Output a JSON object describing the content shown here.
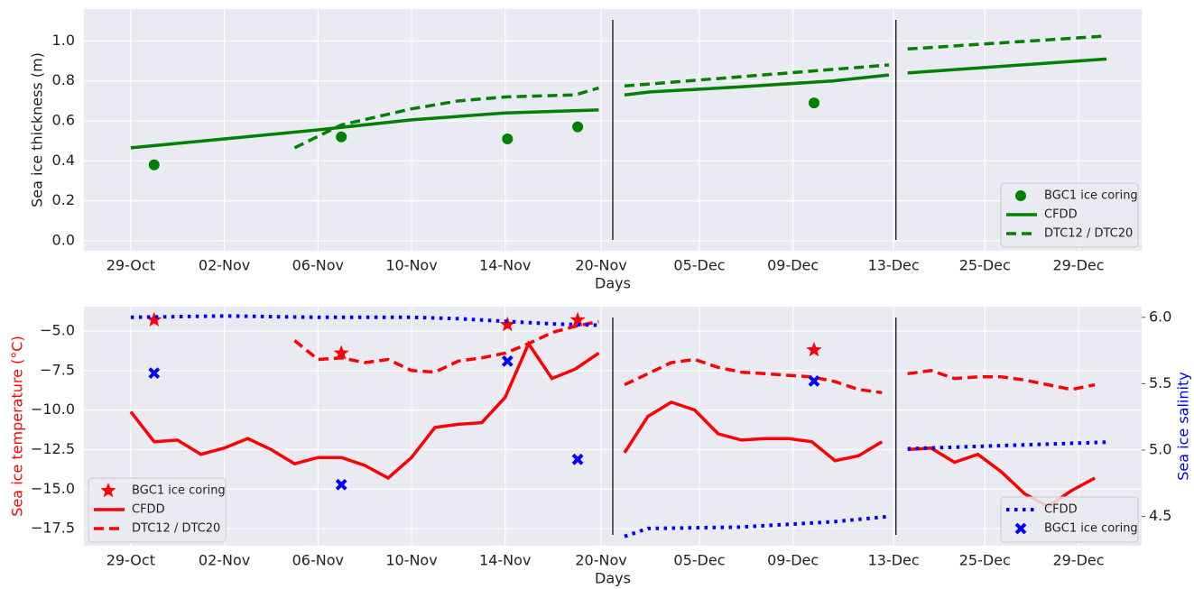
{
  "chart_data": [
    {
      "type": "line",
      "xlabel": "Days",
      "ylabel": "Sea ice thickness (m)",
      "ylabel_color": "#222222",
      "xlim": [
        -2,
        43.2
      ],
      "ylim": [
        -0.05,
        1.16
      ],
      "grid": true,
      "legend": "lower right",
      "xticks": [
        {
          "value": 0,
          "label": "29-Oct"
        },
        {
          "value": 4,
          "label": "02-Nov"
        },
        {
          "value": 8,
          "label": "06-Nov"
        },
        {
          "value": 12,
          "label": "10-Nov"
        },
        {
          "value": 16,
          "label": "14-Nov"
        },
        {
          "value": 20.1,
          "label": "20-Nov"
        },
        {
          "value": 24.3,
          "label": "05-Dec"
        },
        {
          "value": 28.3,
          "label": "09-Dec"
        },
        {
          "value": 32.6,
          "label": "13-Dec"
        },
        {
          "value": 36.5,
          "label": "25-Dec"
        },
        {
          "value": 40.5,
          "label": "29-Dec"
        }
      ],
      "yticks": [
        {
          "value": 0,
          "label": "0.0"
        },
        0.2,
        0.4,
        0.6,
        0.8,
        {
          "value": 1,
          "label": "1.0"
        }
      ],
      "breaks": [
        20.6,
        32.7
      ],
      "series": [
        {
          "name": "BGC1 ice coring",
          "kind": "scatter",
          "marker": "circle",
          "color": "#008000",
          "x": [
            1,
            9,
            16.1,
            19.1,
            29.2
          ],
          "values": [
            0.38,
            0.52,
            0.51,
            0.57,
            0.69
          ]
        },
        {
          "name": "CFDD",
          "kind": "line",
          "dash": "solid",
          "color": "#008000",
          "x": [
            0,
            4,
            8,
            12,
            16,
            20,
            null,
            21.1,
            22.2,
            26,
            30,
            32.4,
            null,
            33.2,
            41.7
          ],
          "values": [
            0.465,
            0.51,
            0.555,
            0.605,
            0.64,
            0.655,
            null,
            0.73,
            0.745,
            0.77,
            0.8,
            0.83,
            null,
            0.84,
            0.91
          ]
        },
        {
          "name": "DTC12 / DTC20",
          "kind": "line",
          "dash": "dashed",
          "color": "#008000",
          "x": [
            7,
            9,
            12,
            14,
            16,
            19,
            20,
            null,
            21.1,
            32.4,
            null,
            33.2,
            41.7
          ],
          "values": [
            0.465,
            0.58,
            0.66,
            0.7,
            0.72,
            0.73,
            0.765,
            null,
            0.775,
            0.88,
            null,
            0.96,
            1.025
          ]
        }
      ]
    },
    {
      "type": "line",
      "xlabel": "Days",
      "ylabel": "Sea ice temperature (°C)",
      "ylabel_color": "#ff0000",
      "y2label": "Sea ice salinity",
      "y2label_color": "#0000ff",
      "xlim": [
        -2,
        43.2
      ],
      "ylim": [
        -18.58,
        -3.46
      ],
      "y2lim": [
        4.28,
        6.08
      ],
      "grid": true,
      "legend": "lower left",
      "legend2": "lower right",
      "xticks": [
        {
          "value": 0,
          "label": "29-Oct"
        },
        {
          "value": 4,
          "label": "02-Nov"
        },
        {
          "value": 8,
          "label": "06-Nov"
        },
        {
          "value": 12,
          "label": "10-Nov"
        },
        {
          "value": 16,
          "label": "14-Nov"
        },
        {
          "value": 20.1,
          "label": "20-Nov"
        },
        {
          "value": 24.3,
          "label": "05-Dec"
        },
        {
          "value": 28.3,
          "label": "09-Dec"
        },
        {
          "value": 32.6,
          "label": "13-Dec"
        },
        {
          "value": 36.5,
          "label": "25-Dec"
        },
        {
          "value": 40.5,
          "label": "29-Dec"
        }
      ],
      "yticks": [
        {
          "value": -17.5,
          "label": "−17.5"
        },
        {
          "value": -15,
          "label": "−15.0"
        },
        {
          "value": -12.5,
          "label": "−12.5"
        },
        {
          "value": -10,
          "label": "−10.0"
        },
        {
          "value": -7.5,
          "label": "−7.5"
        },
        {
          "value": -5,
          "label": "−5.0"
        }
      ],
      "y2ticks": [
        4.5,
        {
          "value": 5,
          "label": "5.0"
        },
        5.5,
        {
          "value": 6,
          "label": "6.0"
        }
      ],
      "breaks": [
        20.6,
        32.7
      ],
      "series": [
        {
          "name": "BGC1 ice coring",
          "kind": "scatter",
          "marker": "star",
          "color": "#ff0000",
          "x": [
            1,
            9,
            16.1,
            19.1,
            29.2
          ],
          "values": [
            -4.3,
            -6.4,
            -4.6,
            -4.3,
            -6.2
          ]
        },
        {
          "name": "CFDD",
          "kind": "line",
          "dash": "solid",
          "color": "#ff0000",
          "x": [
            0,
            1,
            2,
            3,
            4,
            5,
            6,
            7,
            8,
            9,
            10,
            11,
            12,
            13,
            14,
            15,
            16,
            17,
            18,
            19,
            20,
            null,
            21.1,
            22.1,
            23.1,
            24.1,
            25.1,
            26.1,
            27.1,
            28.1,
            29.1,
            30.1,
            31.1,
            32.1,
            null,
            33.2,
            34.2,
            35.2,
            36.2,
            37.2,
            38.2,
            39.2,
            40.2,
            41.2
          ],
          "values": [
            -10.1,
            -12.0,
            -11.9,
            -12.8,
            -12.4,
            -11.8,
            -12.5,
            -13.4,
            -13.0,
            -13.0,
            -13.5,
            -14.3,
            -13.0,
            -11.1,
            -10.9,
            -10.8,
            -9.2,
            -5.8,
            -8.0,
            -7.4,
            -6.4,
            null,
            -12.7,
            -10.4,
            -9.5,
            -10.0,
            -11.5,
            -11.9,
            -11.8,
            -11.8,
            -12.0,
            -13.2,
            -12.9,
            -12.0,
            null,
            -12.5,
            -12.4,
            -13.3,
            -12.8,
            -13.9,
            -15.3,
            -16.1,
            -15.1,
            -14.3
          ]
        },
        {
          "name": "DTC12 / DTC20",
          "kind": "line",
          "dash": "dashed",
          "color": "#ff0000",
          "x": [
            7,
            8,
            9,
            10,
            11,
            12,
            13,
            14,
            15,
            16,
            17,
            18,
            19,
            20,
            null,
            21.1,
            22.1,
            23.1,
            24.1,
            25.1,
            26.1,
            27.1,
            28.1,
            29.1,
            30.1,
            31.1,
            32.1,
            null,
            33.2,
            34.2,
            35.2,
            36.2,
            37.2,
            38.2,
            39.2,
            40.2,
            41.2
          ],
          "values": [
            -5.6,
            -6.8,
            -6.7,
            -7.0,
            -6.8,
            -7.5,
            -7.6,
            -6.9,
            -6.7,
            -6.4,
            -5.8,
            -5.1,
            -4.7,
            -4.4,
            null,
            -8.4,
            -7.7,
            -7.0,
            -6.8,
            -7.3,
            -7.6,
            -7.7,
            -7.8,
            -7.9,
            -8.2,
            -8.7,
            -8.9,
            null,
            -7.7,
            -7.5,
            -8.0,
            -7.9,
            -7.9,
            -8.1,
            -8.4,
            -8.7,
            -8.4
          ]
        },
        {
          "name": "CFDD",
          "kind": "line",
          "dash": "dotted",
          "axis": "y2",
          "color": "#0000ff",
          "x": [
            0,
            4,
            8,
            12,
            14,
            16,
            18,
            20,
            null,
            21.1,
            22.1,
            26,
            30,
            32.4,
            null,
            33.2,
            41.7
          ],
          "values": [
            6.0,
            6.01,
            6.0,
            6.0,
            5.99,
            5.97,
            5.95,
            5.94,
            null,
            4.35,
            4.41,
            4.42,
            4.46,
            4.5,
            null,
            5.01,
            5.06
          ]
        },
        {
          "name": "BGC1 ice coring",
          "kind": "scatter",
          "marker": "x",
          "axis": "y2",
          "color": "#0000ff",
          "x": [
            1,
            9,
            16.1,
            19.1,
            29.2
          ],
          "values": [
            5.58,
            4.74,
            5.67,
            4.93,
            5.52
          ]
        }
      ]
    }
  ]
}
